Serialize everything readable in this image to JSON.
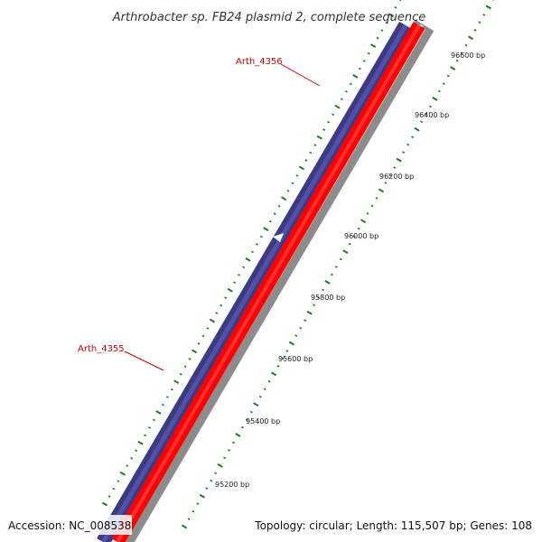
{
  "title": "Arthrobacter sp. FB24 plasmid 2, complete sequence",
  "accession": "Accession: NC_008538",
  "summary": "Topology: circular; Length: 115,507 bp; Genes: 108",
  "genes": [
    {
      "name": "Arth_4356",
      "strand": "reverse"
    },
    {
      "name": "Arth_4355",
      "strand": "forward"
    }
  ],
  "ruler": {
    "ticks": [
      {
        "bp": 95200,
        "label": "95200 bp"
      },
      {
        "bp": 95400,
        "label": "95400 bp"
      },
      {
        "bp": 95600,
        "label": "95600 bp"
      },
      {
        "bp": 95800,
        "label": "95800 bp"
      },
      {
        "bp": 96000,
        "label": "96000 bp"
      },
      {
        "bp": 96200,
        "label": "96200 bp"
      },
      {
        "bp": 96400,
        "label": "96400 bp"
      },
      {
        "bp": 96600,
        "label": "96600 bp"
      }
    ]
  },
  "colors": {
    "forward_feature": "#3b3a85",
    "reverse_feature": "#ff0000",
    "backbone": "#8c8c8c",
    "ticks": "#1e7a1e",
    "gene_label": "#cc0000"
  }
}
